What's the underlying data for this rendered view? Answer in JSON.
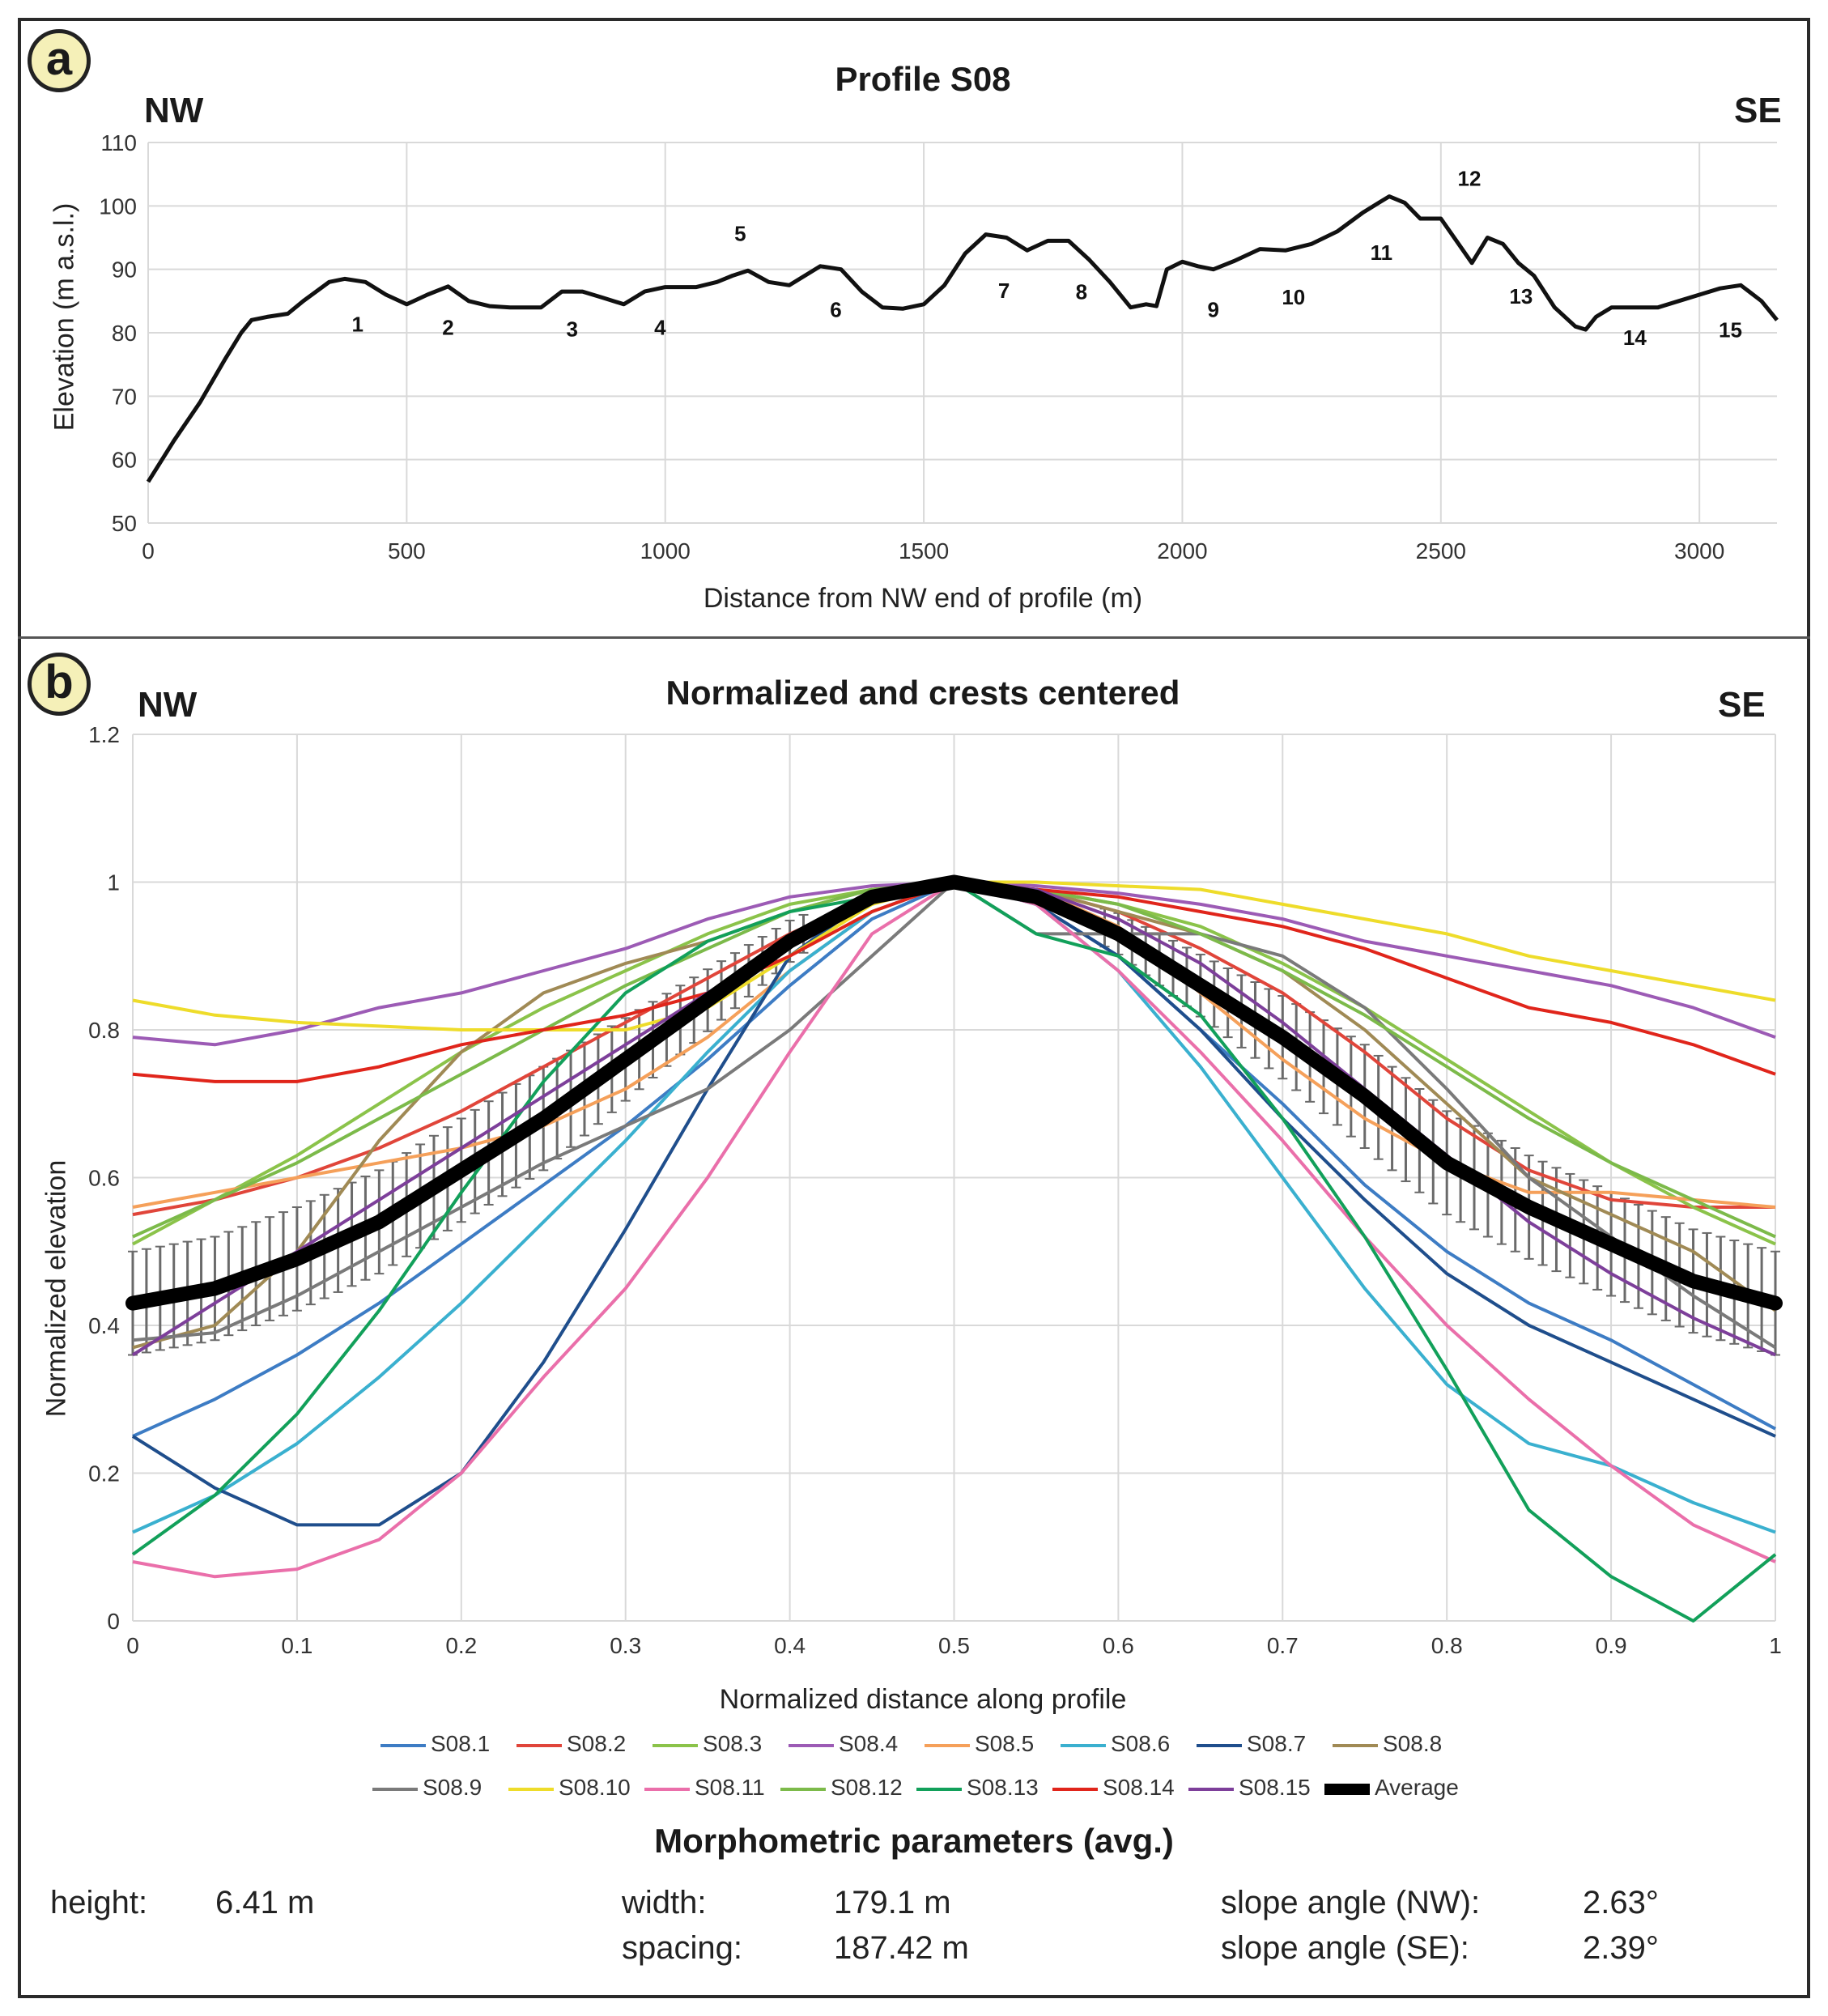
{
  "panel_a": {
    "badge": "a",
    "left_dir": "NW",
    "right_dir": "SE",
    "point_labels": [
      "1",
      "2",
      "3",
      "4",
      "5",
      "6",
      "7",
      "8",
      "9",
      "10",
      "11",
      "12",
      "13",
      "14",
      "15"
    ]
  },
  "panel_b": {
    "badge": "b",
    "left_dir": "NW",
    "right_dir": "SE"
  },
  "colors": {
    "S08.1": "#3d7cc4",
    "S08.2": "#e0453a",
    "S08.3": "#8bc34a",
    "S08.4": "#9c5bb5",
    "S08.5": "#f5a05a",
    "S08.6": "#3ab0cf",
    "S08.7": "#1f4e8c",
    "S08.8": "#a08a55",
    "S08.9": "#7a7a7a",
    "S08.10": "#eedc2a",
    "S08.11": "#ea6faa",
    "S08.12": "#7cba4a",
    "S08.13": "#12a05a",
    "S08.14": "#e0251b",
    "S08.15": "#7d3f9a",
    "Average": "#000000"
  },
  "chart_data": [
    {
      "type": "line",
      "title": "Profile S08",
      "xlabel": "Distance from NW end of profile (m)",
      "ylabel": "Elevation (m a.s.l.)",
      "xlim": [
        0,
        3150
      ],
      "ylim": [
        50,
        110
      ],
      "xticks": [
        0,
        500,
        1000,
        1500,
        2000,
        2500,
        3000
      ],
      "yticks": [
        50,
        60,
        70,
        80,
        90,
        100,
        110
      ],
      "grid": true,
      "series": [
        {
          "name": "Profile S08",
          "x": [
            0,
            50,
            100,
            150,
            180,
            200,
            230,
            270,
            300,
            350,
            380,
            420,
            460,
            500,
            540,
            580,
            620,
            660,
            700,
            760,
            800,
            840,
            880,
            920,
            960,
            1000,
            1060,
            1100,
            1130,
            1160,
            1200,
            1240,
            1300,
            1340,
            1380,
            1420,
            1460,
            1500,
            1540,
            1580,
            1620,
            1660,
            1700,
            1740,
            1780,
            1820,
            1860,
            1900,
            1930,
            1950,
            1970,
            2000,
            2030,
            2060,
            2100,
            2150,
            2200,
            2250,
            2300,
            2350,
            2380,
            2400,
            2430,
            2460,
            2500,
            2530,
            2560,
            2590,
            2620,
            2650,
            2680,
            2720,
            2760,
            2780,
            2800,
            2830,
            2880,
            2920,
            2960,
            3000,
            3040,
            3080,
            3120,
            3150
          ],
          "y": [
            56.5,
            63,
            69,
            76,
            80,
            82,
            82.5,
            83,
            85,
            88,
            88.5,
            88,
            86,
            84.5,
            86,
            87.3,
            85,
            84.2,
            84,
            84,
            86.5,
            86.5,
            85.5,
            84.5,
            86.5,
            87.2,
            87.2,
            88,
            89,
            89.8,
            88,
            87.5,
            90.5,
            90,
            86.5,
            84,
            83.8,
            84.5,
            87.5,
            92.5,
            95.5,
            95,
            93,
            94.5,
            94.5,
            91.5,
            88,
            84,
            84.5,
            84.2,
            90,
            91.2,
            90.5,
            90,
            91.3,
            93.2,
            93,
            94,
            96,
            99,
            100.5,
            101.5,
            100.5,
            98,
            98,
            94.5,
            91,
            95,
            94,
            91,
            89,
            84,
            81,
            80.5,
            82.5,
            84,
            84,
            84,
            85,
            86,
            87,
            87.5,
            85,
            82
          ]
        }
      ],
      "annotations": [
        {
          "label": "1",
          "x": 405,
          "y": 80.2
        },
        {
          "label": "2",
          "x": 580,
          "y": 79.7
        },
        {
          "label": "3",
          "x": 820,
          "y": 79.4
        },
        {
          "label": "4",
          "x": 990,
          "y": 79.7
        },
        {
          "label": "5",
          "x": 1145,
          "y": 94.5
        },
        {
          "label": "6",
          "x": 1330,
          "y": 82.5
        },
        {
          "label": "7",
          "x": 1655,
          "y": 85.5
        },
        {
          "label": "8",
          "x": 1805,
          "y": 85.3
        },
        {
          "label": "9",
          "x": 2060,
          "y": 82.5
        },
        {
          "label": "10",
          "x": 2215,
          "y": 84.5
        },
        {
          "label": "11",
          "x": 2385,
          "y": 91.5
        },
        {
          "label": "12",
          "x": 2555,
          "y": 103.2
        },
        {
          "label": "13",
          "x": 2655,
          "y": 84.6
        },
        {
          "label": "14",
          "x": 2875,
          "y": 78.1
        },
        {
          "label": "15",
          "x": 3060,
          "y": 79.3
        }
      ]
    },
    {
      "type": "line",
      "title": "Normalized and crests centered",
      "xlabel": "Normalized distance along profile",
      "ylabel": "Normalized elevation",
      "xlim": [
        0,
        1
      ],
      "ylim": [
        0,
        1.2
      ],
      "xticks": [
        0,
        0.1,
        0.2,
        0.3,
        0.4,
        0.5,
        0.6,
        0.7,
        0.8,
        0.9,
        1
      ],
      "yticks": [
        0,
        0.2,
        0.4,
        0.6,
        0.8,
        1,
        1.2
      ],
      "grid": true,
      "legend": "bottom",
      "x": [
        0,
        0.05,
        0.1,
        0.15,
        0.2,
        0.25,
        0.3,
        0.35,
        0.4,
        0.45,
        0.5,
        0.55,
        0.6,
        0.65,
        0.7,
        0.75,
        0.8,
        0.85,
        0.9,
        0.95,
        1
      ],
      "series": [
        {
          "name": "S08.1",
          "values": [
            0.25,
            0.3,
            0.36,
            0.43,
            0.51,
            0.59,
            0.67,
            0.76,
            0.86,
            0.95,
            1,
            0.97,
            0.9,
            0.8,
            0.7,
            0.59,
            0.5,
            0.43,
            0.38,
            0.32,
            0.26
          ]
        },
        {
          "name": "S08.2",
          "values": [
            0.55,
            0.57,
            0.6,
            0.64,
            0.69,
            0.75,
            0.81,
            0.87,
            0.93,
            0.98,
            1,
            0.99,
            0.96,
            0.91,
            0.85,
            0.77,
            0.68,
            0.61,
            0.57,
            0.56,
            0.56
          ]
        },
        {
          "name": "S08.3",
          "values": [
            0.51,
            0.57,
            0.63,
            0.7,
            0.77,
            0.83,
            0.88,
            0.93,
            0.97,
            0.99,
            1,
            0.99,
            0.97,
            0.94,
            0.89,
            0.83,
            0.76,
            0.69,
            0.62,
            0.56,
            0.51
          ]
        },
        {
          "name": "S08.4",
          "values": [
            0.79,
            0.78,
            0.8,
            0.83,
            0.85,
            0.88,
            0.91,
            0.95,
            0.98,
            0.995,
            1,
            0.995,
            0.985,
            0.97,
            0.95,
            0.92,
            0.9,
            0.88,
            0.86,
            0.83,
            0.79
          ]
        },
        {
          "name": "S08.5",
          "values": [
            0.56,
            0.58,
            0.6,
            0.62,
            0.64,
            0.67,
            0.72,
            0.79,
            0.88,
            0.96,
            1,
            0.99,
            0.94,
            0.85,
            0.76,
            0.68,
            0.62,
            0.58,
            0.58,
            0.57,
            0.56
          ]
        },
        {
          "name": "S08.6",
          "values": [
            0.12,
            0.17,
            0.24,
            0.33,
            0.43,
            0.54,
            0.65,
            0.77,
            0.88,
            0.96,
            1,
            0.97,
            0.88,
            0.75,
            0.6,
            0.45,
            0.32,
            0.24,
            0.21,
            0.16,
            0.12
          ]
        },
        {
          "name": "S08.7",
          "values": [
            0.25,
            0.18,
            0.13,
            0.13,
            0.2,
            0.35,
            0.53,
            0.72,
            0.9,
            0.98,
            1,
            0.97,
            0.9,
            0.8,
            0.68,
            0.57,
            0.47,
            0.4,
            0.35,
            0.3,
            0.25
          ]
        },
        {
          "name": "S08.8",
          "values": [
            0.37,
            0.4,
            0.5,
            0.65,
            0.77,
            0.85,
            0.89,
            0.92,
            0.96,
            0.99,
            1,
            0.99,
            0.96,
            0.93,
            0.88,
            0.8,
            0.7,
            0.6,
            0.55,
            0.5,
            0.42
          ]
        },
        {
          "name": "S08.9",
          "values": [
            0.38,
            0.39,
            0.44,
            0.5,
            0.56,
            0.62,
            0.67,
            0.72,
            0.8,
            0.9,
            1,
            0.93,
            0.93,
            0.93,
            0.9,
            0.83,
            0.72,
            0.6,
            0.52,
            0.44,
            0.37
          ]
        },
        {
          "name": "S08.10",
          "values": [
            0.84,
            0.82,
            0.81,
            0.805,
            0.8,
            0.8,
            0.8,
            0.83,
            0.9,
            0.97,
            1,
            1,
            0.995,
            0.99,
            0.97,
            0.95,
            0.93,
            0.9,
            0.88,
            0.86,
            0.84
          ]
        },
        {
          "name": "S08.11",
          "values": [
            0.08,
            0.06,
            0.07,
            0.11,
            0.2,
            0.33,
            0.45,
            0.6,
            0.77,
            0.93,
            1,
            0.97,
            0.88,
            0.77,
            0.65,
            0.52,
            0.4,
            0.3,
            0.21,
            0.13,
            0.08
          ]
        },
        {
          "name": "S08.12",
          "values": [
            0.52,
            0.57,
            0.62,
            0.68,
            0.74,
            0.8,
            0.86,
            0.91,
            0.96,
            0.99,
            1,
            0.99,
            0.97,
            0.93,
            0.88,
            0.82,
            0.75,
            0.68,
            0.62,
            0.57,
            0.52
          ]
        },
        {
          "name": "S08.13",
          "values": [
            0.09,
            0.17,
            0.28,
            0.42,
            0.58,
            0.73,
            0.85,
            0.92,
            0.96,
            0.98,
            1,
            0.93,
            0.9,
            0.82,
            0.68,
            0.52,
            0.34,
            0.15,
            0.06,
            0.0,
            0.09
          ]
        },
        {
          "name": "S08.14",
          "values": [
            0.74,
            0.73,
            0.73,
            0.75,
            0.78,
            0.8,
            0.82,
            0.85,
            0.9,
            0.96,
            1,
            0.99,
            0.98,
            0.96,
            0.94,
            0.91,
            0.87,
            0.83,
            0.81,
            0.78,
            0.74
          ]
        },
        {
          "name": "S08.15",
          "values": [
            0.36,
            0.43,
            0.5,
            0.57,
            0.64,
            0.71,
            0.78,
            0.85,
            0.92,
            0.98,
            1,
            0.99,
            0.95,
            0.89,
            0.81,
            0.72,
            0.63,
            0.54,
            0.47,
            0.41,
            0.36
          ]
        },
        {
          "name": "Average",
          "values": [
            0.43,
            0.45,
            0.49,
            0.54,
            0.61,
            0.68,
            0.76,
            0.84,
            0.92,
            0.98,
            1,
            0.98,
            0.93,
            0.86,
            0.79,
            0.71,
            0.62,
            0.56,
            0.51,
            0.46,
            0.43
          ]
        }
      ],
      "error_band": {
        "name": "Average",
        "half_width": 0.07
      }
    }
  ],
  "morphometric": {
    "title": "Morphometric parameters (avg.)",
    "height_label": "height:",
    "height_value": "6.41 m",
    "width_label": "width:",
    "width_value": "179.1 m",
    "spacing_label": "spacing:",
    "spacing_value": "187.42 m",
    "slope_nw_label": "slope angle (NW):",
    "slope_nw_value": "2.63°",
    "slope_se_label": "slope angle (SE):",
    "slope_se_value": "2.39°"
  }
}
